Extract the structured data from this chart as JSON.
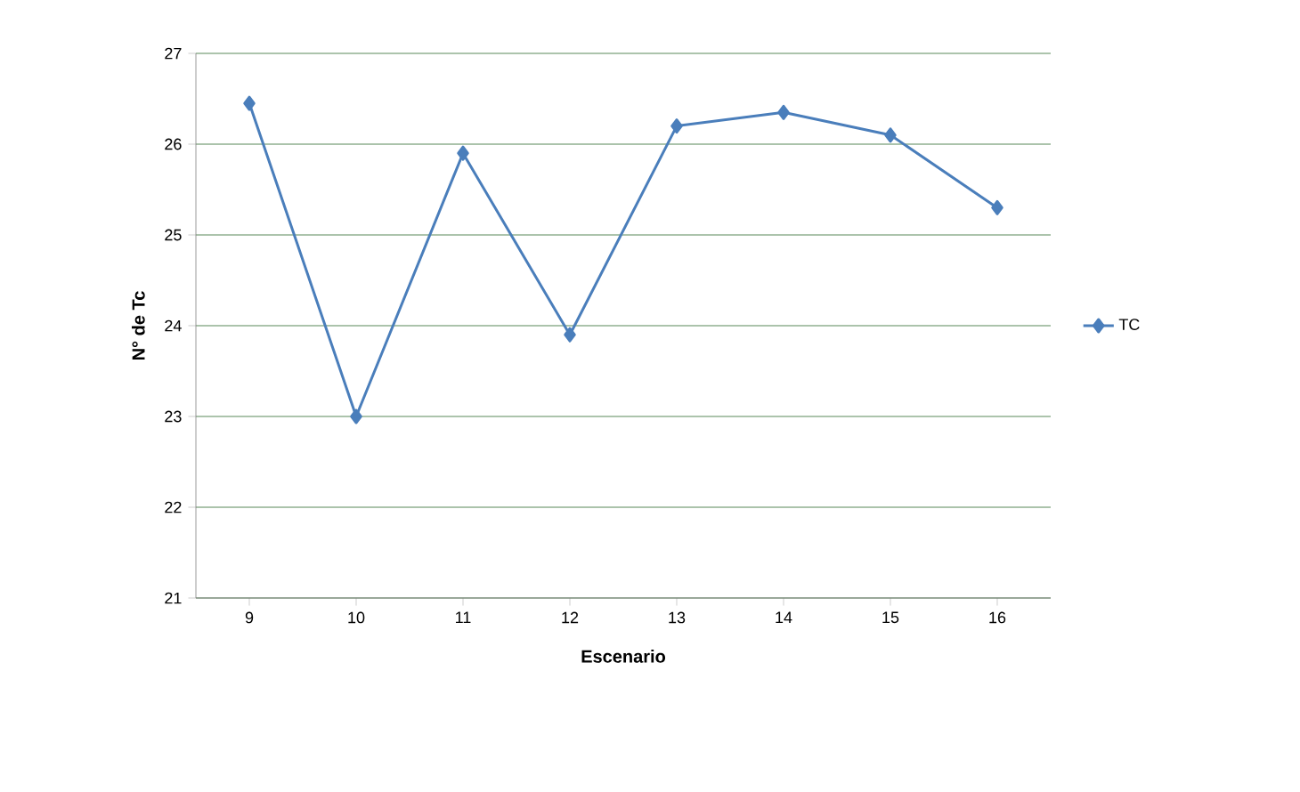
{
  "chart_data": {
    "type": "line",
    "xlabel": "Escenario",
    "ylabel": "N° de Tc",
    "categories": [
      "9",
      "10",
      "11",
      "12",
      "13",
      "14",
      "15",
      "16"
    ],
    "series": [
      {
        "name": "TC",
        "color": "#4a7ebb",
        "values": [
          26.45,
          23.0,
          25.9,
          23.9,
          26.2,
          26.35,
          26.1,
          25.3
        ]
      }
    ],
    "ylim": [
      21,
      27
    ],
    "yticks": [
      21,
      22,
      23,
      24,
      25,
      26,
      27
    ],
    "grid": "y",
    "legend": "right",
    "marker": "diamond",
    "line_style": "solid"
  }
}
